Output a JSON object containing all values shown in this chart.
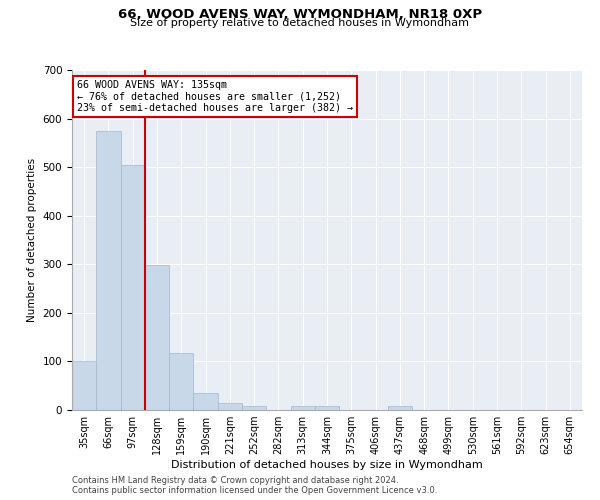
{
  "title": "66, WOOD AVENS WAY, WYMONDHAM, NR18 0XP",
  "subtitle": "Size of property relative to detached houses in Wymondham",
  "xlabel": "Distribution of detached houses by size in Wymondham",
  "ylabel": "Number of detached properties",
  "categories": [
    "35sqm",
    "66sqm",
    "97sqm",
    "128sqm",
    "159sqm",
    "190sqm",
    "221sqm",
    "252sqm",
    "282sqm",
    "313sqm",
    "344sqm",
    "375sqm",
    "406sqm",
    "437sqm",
    "468sqm",
    "499sqm",
    "530sqm",
    "561sqm",
    "592sqm",
    "623sqm",
    "654sqm"
  ],
  "values": [
    100,
    575,
    505,
    298,
    118,
    35,
    15,
    8,
    0,
    8,
    8,
    0,
    0,
    8,
    0,
    0,
    0,
    0,
    0,
    0,
    0
  ],
  "bar_color": "#c8d8e8",
  "bar_edge_color": "#a0b8d0",
  "vline_color": "#cc0000",
  "annotation_text": "66 WOOD AVENS WAY: 135sqm\n← 76% of detached houses are smaller (1,252)\n23% of semi-detached houses are larger (382) →",
  "annotation_box_color": "#ffffff",
  "annotation_box_edge": "#cc0000",
  "ylim": [
    0,
    700
  ],
  "yticks": [
    0,
    100,
    200,
    300,
    400,
    500,
    600,
    700
  ],
  "background_color": "#e8eef4",
  "footer_line1": "Contains HM Land Registry data © Crown copyright and database right 2024.",
  "footer_line2": "Contains public sector information licensed under the Open Government Licence v3.0."
}
